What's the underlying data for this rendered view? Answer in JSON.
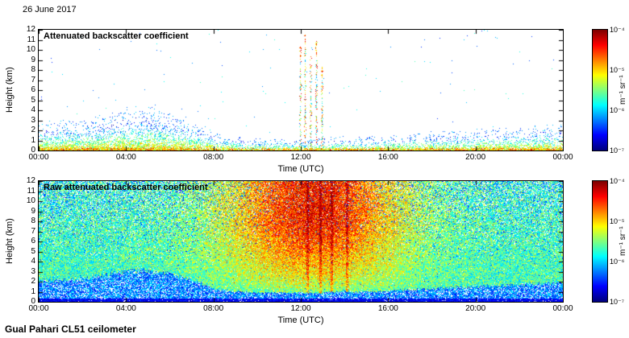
{
  "header": {
    "date": "26 June 2017"
  },
  "footer": {
    "instrument": "Gual Pahari CL51 ceilometer"
  },
  "chart_data": [
    {
      "type": "heatmap",
      "title": "Attenuated backscatter coefficient",
      "xlabel": "Time (UTC)",
      "ylabel": "Height (km)",
      "x_ticks": [
        "00:00",
        "04:00",
        "08:00",
        "12:00",
        "16:00",
        "20:00",
        "00:00"
      ],
      "x_range_hours": [
        0,
        24
      ],
      "y_ticks": [
        "0",
        "1",
        "2",
        "3",
        "4",
        "5",
        "6",
        "7",
        "8",
        "9",
        "10",
        "11",
        "12"
      ],
      "y_range_km": [
        0,
        12
      ],
      "colormap": "jet",
      "grid": false,
      "colorbar": {
        "label": "m⁻¹ sr⁻¹",
        "tick_labels": [
          "10⁻⁴",
          "10⁻⁵",
          "10⁻⁶",
          "10⁻⁷"
        ],
        "scale": "log10",
        "min": 1e-07,
        "max": 0.0001,
        "position": "right"
      },
      "features": {
        "background": "white where signal below detection",
        "boundary_layer": {
          "description": "speckled aerosol layer near surface, deepest ~3 km around 04:00-05:00, shallow ~1 km midday, regrowing toward midnight",
          "top_km_by_hour": [
            2.0,
            2.1,
            2.3,
            2.6,
            3.0,
            3.1,
            2.8,
            2.2,
            1.3,
            1.0,
            0.9,
            0.9,
            0.9,
            0.9,
            1.0,
            1.0,
            1.1,
            1.2,
            1.3,
            1.4,
            1.5,
            1.6,
            1.7,
            1.8,
            1.9
          ]
        },
        "spikes": [
          {
            "time_utc": 11.95,
            "top_km": 10.5
          },
          {
            "time_utc": 12.2,
            "top_km": 11.5
          },
          {
            "time_utc": 12.45,
            "top_km": 9.5
          },
          {
            "time_utc": 12.7,
            "top_km": 11.0
          },
          {
            "time_utc": 12.95,
            "top_km": 8.5
          }
        ]
      },
      "render": {
        "seed": 42
      }
    },
    {
      "type": "heatmap",
      "title": "Raw attenuated backscatter coefficient",
      "xlabel": "Time (UTC)",
      "ylabel": "Height (km)",
      "x_ticks": [
        "00:00",
        "04:00",
        "08:00",
        "12:00",
        "16:00",
        "20:00",
        "00:00"
      ],
      "x_range_hours": [
        0,
        24
      ],
      "y_ticks": [
        "0",
        "1",
        "2",
        "3",
        "4",
        "5",
        "6",
        "7",
        "8",
        "9",
        "10",
        "11",
        "12"
      ],
      "y_range_km": [
        0,
        12
      ],
      "colormap": "jet",
      "grid": false,
      "colorbar": {
        "label": "m⁻¹ sr⁻¹",
        "tick_labels": [
          "10⁻⁴",
          "10⁻⁵",
          "10⁻⁶",
          "10⁻⁷"
        ],
        "scale": "log10",
        "min": 1e-07,
        "max": 0.0001,
        "position": "right"
      },
      "features": {
        "background": "full-field granular instrument noise",
        "midday_noise_enhancement": {
          "center_hour": 12.6,
          "sigma_hours": 4.2,
          "description": "solar background raises noise to yellow/orange/red at mid-to-high altitudes around 10:00-16:00"
        },
        "surface_band": {
          "description": "low dark-blue band with white dropouts below ~2 km, bump to ~3 km around 04:00-06:00",
          "top_km_by_hour": [
            2.0,
            2.1,
            2.3,
            2.6,
            3.0,
            3.1,
            2.8,
            2.2,
            1.3,
            1.0,
            0.9,
            0.9,
            0.9,
            0.9,
            1.0,
            1.0,
            1.1,
            1.2,
            1.3,
            1.4,
            1.5,
            1.6,
            1.7,
            1.8,
            1.9
          ]
        },
        "red_streak_hours": [
          12.3,
          12.9,
          13.4,
          14.1
        ]
      },
      "render": {
        "seed": 1337
      }
    }
  ]
}
